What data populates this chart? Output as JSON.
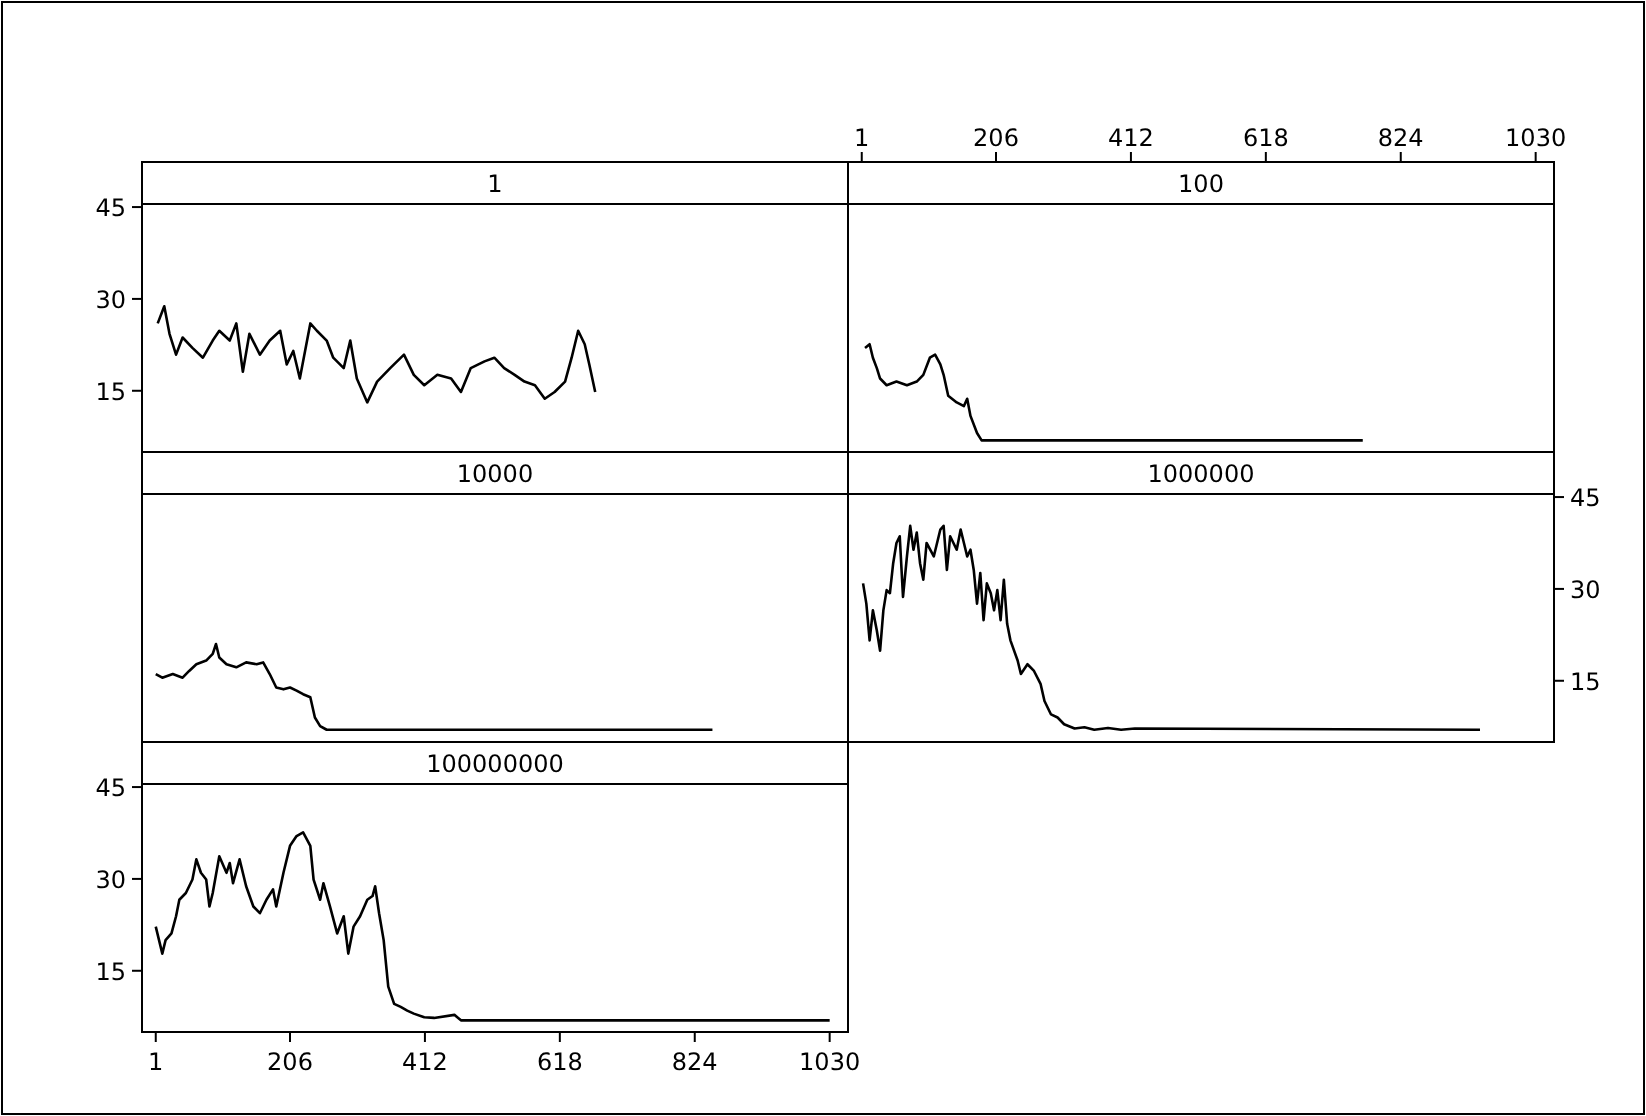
{
  "chart_data": [
    {
      "type": "line",
      "title": "1",
      "x": [
        4,
        14,
        22,
        32,
        42,
        57,
        73,
        88,
        98,
        114,
        124,
        134,
        144,
        160,
        175,
        191,
        201,
        211,
        221,
        237,
        247,
        262,
        272,
        288,
        298,
        308,
        324,
        339,
        359,
        380,
        395,
        411,
        431,
        452,
        467,
        482,
        503,
        518,
        533,
        549,
        564,
        580,
        595,
        610,
        626,
        636,
        646,
        656,
        663,
        672
      ],
      "xlim": [
        -20,
        1058
      ],
      "ylim": [
        5,
        45.5
      ],
      "yticks": [
        15,
        30,
        45
      ],
      "tick_labels": "y",
      "series": [
        {
          "color": "#000000",
          "values": [
            26.0,
            28.8,
            24.3,
            20.9,
            23.7,
            22.0,
            20.4,
            23.2,
            24.8,
            23.2,
            26.0,
            18.1,
            24.3,
            20.9,
            23.2,
            24.8,
            19.3,
            21.5,
            17.0,
            26.0,
            24.8,
            23.2,
            20.4,
            18.7,
            23.2,
            17.0,
            13.1,
            16.5,
            18.7,
            20.9,
            17.6,
            15.9,
            17.6,
            17.0,
            14.8,
            18.7,
            19.8,
            20.4,
            18.7,
            17.6,
            16.5,
            15.9,
            13.7,
            14.8,
            16.5,
            20.4,
            24.8,
            22.6,
            19.3,
            14.8
          ]
        }
      ]
    },
    {
      "type": "line",
      "title": "100",
      "x": [
        6,
        13,
        18,
        24,
        29,
        39,
        54,
        70,
        85,
        95,
        105,
        113,
        121,
        126,
        133,
        146,
        157,
        162,
        167,
        177,
        184,
        192,
        766
      ],
      "xlim": [
        -20,
        1058
      ],
      "ylim": [
        5,
        45.5
      ],
      "xticks": [
        1,
        206,
        412,
        618,
        824,
        1030
      ],
      "tick_labels": "x",
      "series": [
        {
          "color": "#000000",
          "values": [
            22.0,
            22.6,
            20.4,
            18.7,
            17.0,
            15.9,
            16.5,
            15.9,
            16.5,
            17.6,
            20.4,
            20.9,
            19.3,
            17.6,
            14.2,
            13.1,
            12.5,
            13.7,
            10.9,
            8.1,
            6.9,
            6.9,
            6.9
          ]
        }
      ]
    },
    {
      "type": "line",
      "title": "10000",
      "x": [
        1,
        11,
        27,
        42,
        52,
        63,
        78,
        88,
        93,
        98,
        109,
        124,
        139,
        155,
        165,
        175,
        185,
        196,
        206,
        216,
        226,
        237,
        244,
        252,
        262,
        851
      ],
      "xlim": [
        -20,
        1058
      ],
      "ylim": [
        5,
        45.5
      ],
      "tick_labels": false,
      "series": [
        {
          "color": "#000000",
          "values": [
            16.1,
            15.5,
            16.1,
            15.5,
            16.6,
            17.7,
            18.3,
            19.4,
            21.0,
            18.8,
            17.7,
            17.2,
            18.0,
            17.7,
            18.0,
            16.1,
            13.9,
            13.6,
            13.9,
            13.4,
            12.8,
            12.3,
            9.0,
            7.6,
            7.0,
            7.0
          ]
        }
      ]
    },
    {
      "type": "line",
      "title": "1000000",
      "x": [
        3,
        8,
        13,
        18,
        24,
        29,
        34,
        39,
        44,
        49,
        54,
        59,
        64,
        70,
        75,
        80,
        85,
        90,
        95,
        100,
        111,
        121,
        126,
        131,
        136,
        146,
        152,
        162,
        167,
        172,
        177,
        182,
        187,
        192,
        198,
        203,
        208,
        213,
        218,
        223,
        228,
        239,
        244,
        254,
        264,
        274,
        280,
        290,
        300,
        310,
        326,
        341,
        356,
        377,
        397,
        418,
        945
      ],
      "xlim": [
        -20,
        1058
      ],
      "ylim": [
        5,
        45.5
      ],
      "yticks": [
        15,
        30,
        45
      ],
      "tick_labels": "y",
      "series": [
        {
          "color": "#000000",
          "values": [
            30.9,
            27.6,
            21.6,
            26.5,
            23.2,
            19.9,
            26.5,
            29.8,
            29.3,
            34.2,
            37.5,
            38.6,
            28.7,
            35.3,
            40.3,
            36.4,
            39.2,
            34.2,
            31.5,
            37.5,
            35.3,
            39.7,
            40.3,
            33.1,
            38.6,
            36.4,
            39.7,
            35.3,
            36.4,
            33.1,
            27.6,
            32.6,
            24.9,
            30.9,
            29.3,
            26.5,
            29.8,
            24.9,
            31.5,
            24.3,
            21.6,
            18.3,
            16.1,
            17.7,
            16.6,
            14.5,
            11.7,
            9.5,
            9.0,
            7.9,
            7.2,
            7.4,
            7.0,
            7.3,
            7.0,
            7.2,
            7.0
          ]
        }
      ]
    },
    {
      "type": "line",
      "title": "100000000",
      "x": [
        1,
        6,
        11,
        16,
        25,
        32,
        37,
        47,
        57,
        63,
        70,
        78,
        83,
        88,
        98,
        109,
        114,
        119,
        129,
        139,
        150,
        160,
        170,
        180,
        185,
        196,
        206,
        216,
        226,
        237,
        242,
        252,
        257,
        267,
        278,
        288,
        295,
        303,
        313,
        324,
        332,
        336,
        342,
        349,
        356,
        365,
        375,
        385,
        395,
        411,
        426,
        457,
        467,
        1030
      ],
      "xlim": [
        -20,
        1058
      ],
      "ylim": [
        5,
        45.5
      ],
      "xticks": [
        1,
        206,
        412,
        618,
        824,
        1030
      ],
      "yticks": [
        15,
        30,
        45
      ],
      "series": [
        {
          "color": "#000000",
          "values": [
            22.2,
            20.0,
            17.8,
            20.0,
            21.1,
            23.9,
            26.6,
            27.7,
            29.9,
            33.2,
            31.0,
            29.9,
            25.5,
            27.7,
            33.7,
            31.0,
            32.6,
            29.3,
            33.2,
            28.8,
            25.5,
            24.4,
            26.6,
            28.3,
            25.5,
            31.0,
            35.4,
            37.0,
            37.6,
            35.4,
            29.9,
            26.6,
            29.3,
            25.5,
            21.1,
            23.9,
            17.8,
            22.2,
            23.9,
            26.6,
            27.2,
            28.8,
            24.4,
            20.0,
            12.4,
            9.6,
            9.1,
            8.5,
            8.0,
            7.4,
            7.3,
            7.8,
            6.9,
            6.9
          ]
        }
      ]
    }
  ]
}
